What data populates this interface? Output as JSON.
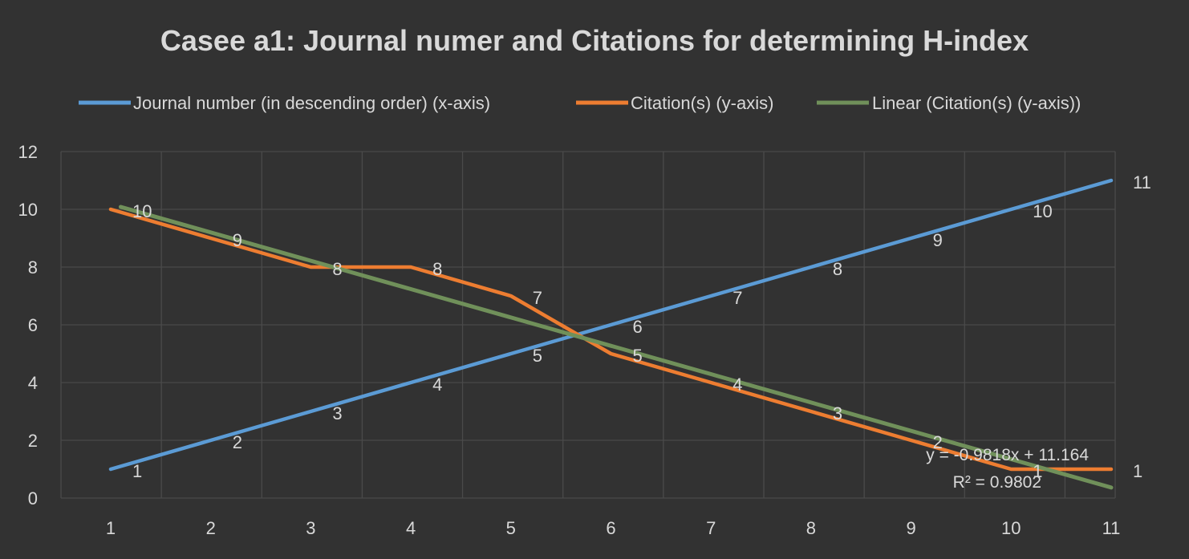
{
  "chart_data": {
    "type": "line",
    "title": "Casee a1: Journal numer and Citations for determining H-index",
    "xlabel": "",
    "ylabel": "",
    "categories": [
      "1",
      "2",
      "3",
      "4",
      "5",
      "6",
      "7",
      "8",
      "9",
      "10",
      "11"
    ],
    "xlim": [
      1,
      11
    ],
    "ylim": [
      0,
      12
    ],
    "y_ticks": [
      "0",
      "2",
      "4",
      "6",
      "8",
      "10",
      "12"
    ],
    "grid": true,
    "legend_position": "top",
    "series": [
      {
        "name": "Journal number (in descending order) (x-axis)",
        "color": "#5b9bd5",
        "values": [
          1,
          2,
          3,
          4,
          5,
          6,
          7,
          8,
          9,
          10,
          11
        ],
        "data_labels": [
          "1",
          "2",
          "3",
          "4",
          "5",
          "6",
          "7",
          "8",
          "9",
          "10",
          "11"
        ]
      },
      {
        "name": "Citation(s) (y-axis)",
        "color": "#ed7d31",
        "values": [
          10,
          9,
          8,
          8,
          7,
          5,
          4,
          3,
          2,
          1,
          1
        ],
        "data_labels": [
          "10",
          "9",
          "8",
          "8",
          "7",
          "5",
          "4",
          "3",
          "2",
          "1",
          "1"
        ]
      },
      {
        "name": "Linear (Citation(s) (y-axis))",
        "color": "#70905a",
        "trendline": {
          "slope": -0.9818,
          "intercept": 11.164
        }
      }
    ],
    "trendline_equation": "y = -0.9818x + 11.164",
    "trendline_r2": "R² = 0.9802"
  }
}
